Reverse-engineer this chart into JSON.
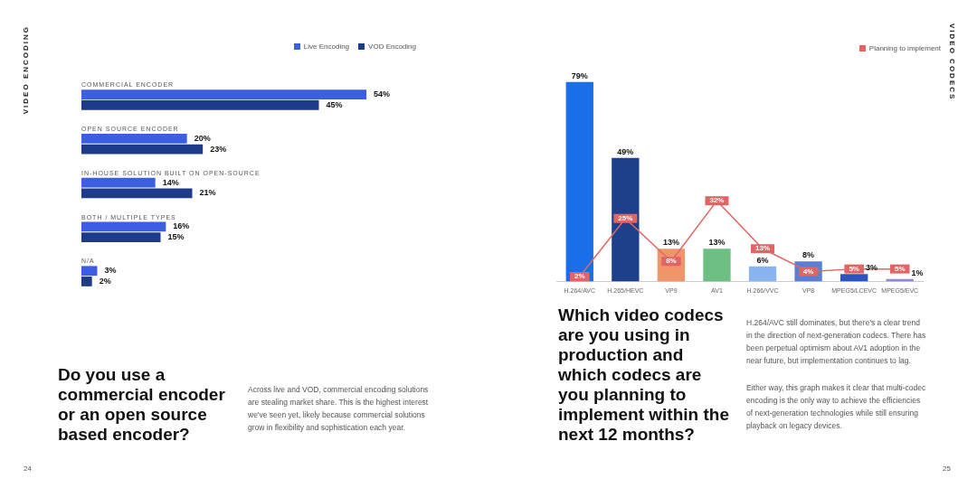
{
  "chart_data": [
    {
      "type": "bar",
      "orientation": "horizontal",
      "title": "Do you use a commercial encoder or an open source based encoder?",
      "categories": [
        "COMMERCIAL ENCODER",
        "OPEN SOURCE ENCODER",
        "IN-HOUSE SOLUTION BUILT ON OPEN-SOURCE",
        "BOTH / MULTIPLE TYPES",
        "N/A"
      ],
      "series": [
        {
          "name": "Live Encoding",
          "color": "#3b5fe0",
          "values": [
            54,
            20,
            14,
            16,
            3
          ],
          "value_labels": [
            "54%",
            "20%",
            "14%",
            "16%",
            "3%"
          ]
        },
        {
          "name": "VOD Encoding",
          "color": "#1e3a8a",
          "values": [
            45,
            23,
            21,
            15,
            2
          ],
          "value_labels": [
            "45%",
            "23%",
            "21%",
            "15%",
            "2%"
          ]
        }
      ],
      "legend": "top right",
      "tick_labels": false,
      "grid": false,
      "annotations": [
        "VIDEO ENCODING",
        "24",
        "Across live and VOD, commercial encoding solutions are stealing market share. This is the highest interest we've seen yet, likely because commercial solutions grow in flexibility and sophistication each year."
      ]
    },
    {
      "type": "bar",
      "title": "Which video codecs are you using in production and which codecs are you planning to implement within the next 12 months?",
      "categories": [
        "H.264/AVC",
        "H.265/HEVC",
        "VP9",
        "AV1",
        "H.266/VVC",
        "VP8",
        "MPEG5/LCEVC",
        "MPEG5/EVC"
      ],
      "series": [
        {
          "type": "bar",
          "colors": [
            "#1a6ee8",
            "#1e3f8a",
            "#f0956a",
            "#6dbf82",
            "#8ab4f0",
            "#5b7fd6",
            "#2a55c0",
            "#8a8ad6"
          ],
          "values": [
            79,
            49,
            13,
            13,
            6,
            8,
            3,
            1
          ],
          "value_labels": [
            "79%",
            "49%",
            "13%",
            "13%",
            "6%",
            "8%",
            "3%",
            "1%"
          ]
        },
        {
          "type": "line",
          "name": "Planning to implement",
          "color": "#e06666",
          "values": [
            2,
            25,
            8,
            32,
            13,
            4,
            5,
            5
          ],
          "value_labels": [
            "2%",
            "25%",
            "8%",
            "32%",
            "13%",
            "4%",
            "5%",
            "5%"
          ]
        }
      ],
      "legend": "top right",
      "tick_labels": "x",
      "grid": false,
      "marker": "square",
      "annotations": [
        "VIDEO CODECS",
        "25",
        "H.264/AVC still dominates, but there's a clear trend in the direction of next-generation codecs. There has been perpetual optimism about AV1 adoption in the near future, but implementation continues to lag.",
        "Either way, this graph makes it clear that multi-codec encoding is the only way to achieve the efficiencies of next-generation technologies while still ensuring playback on legacy devices."
      ]
    }
  ]
}
